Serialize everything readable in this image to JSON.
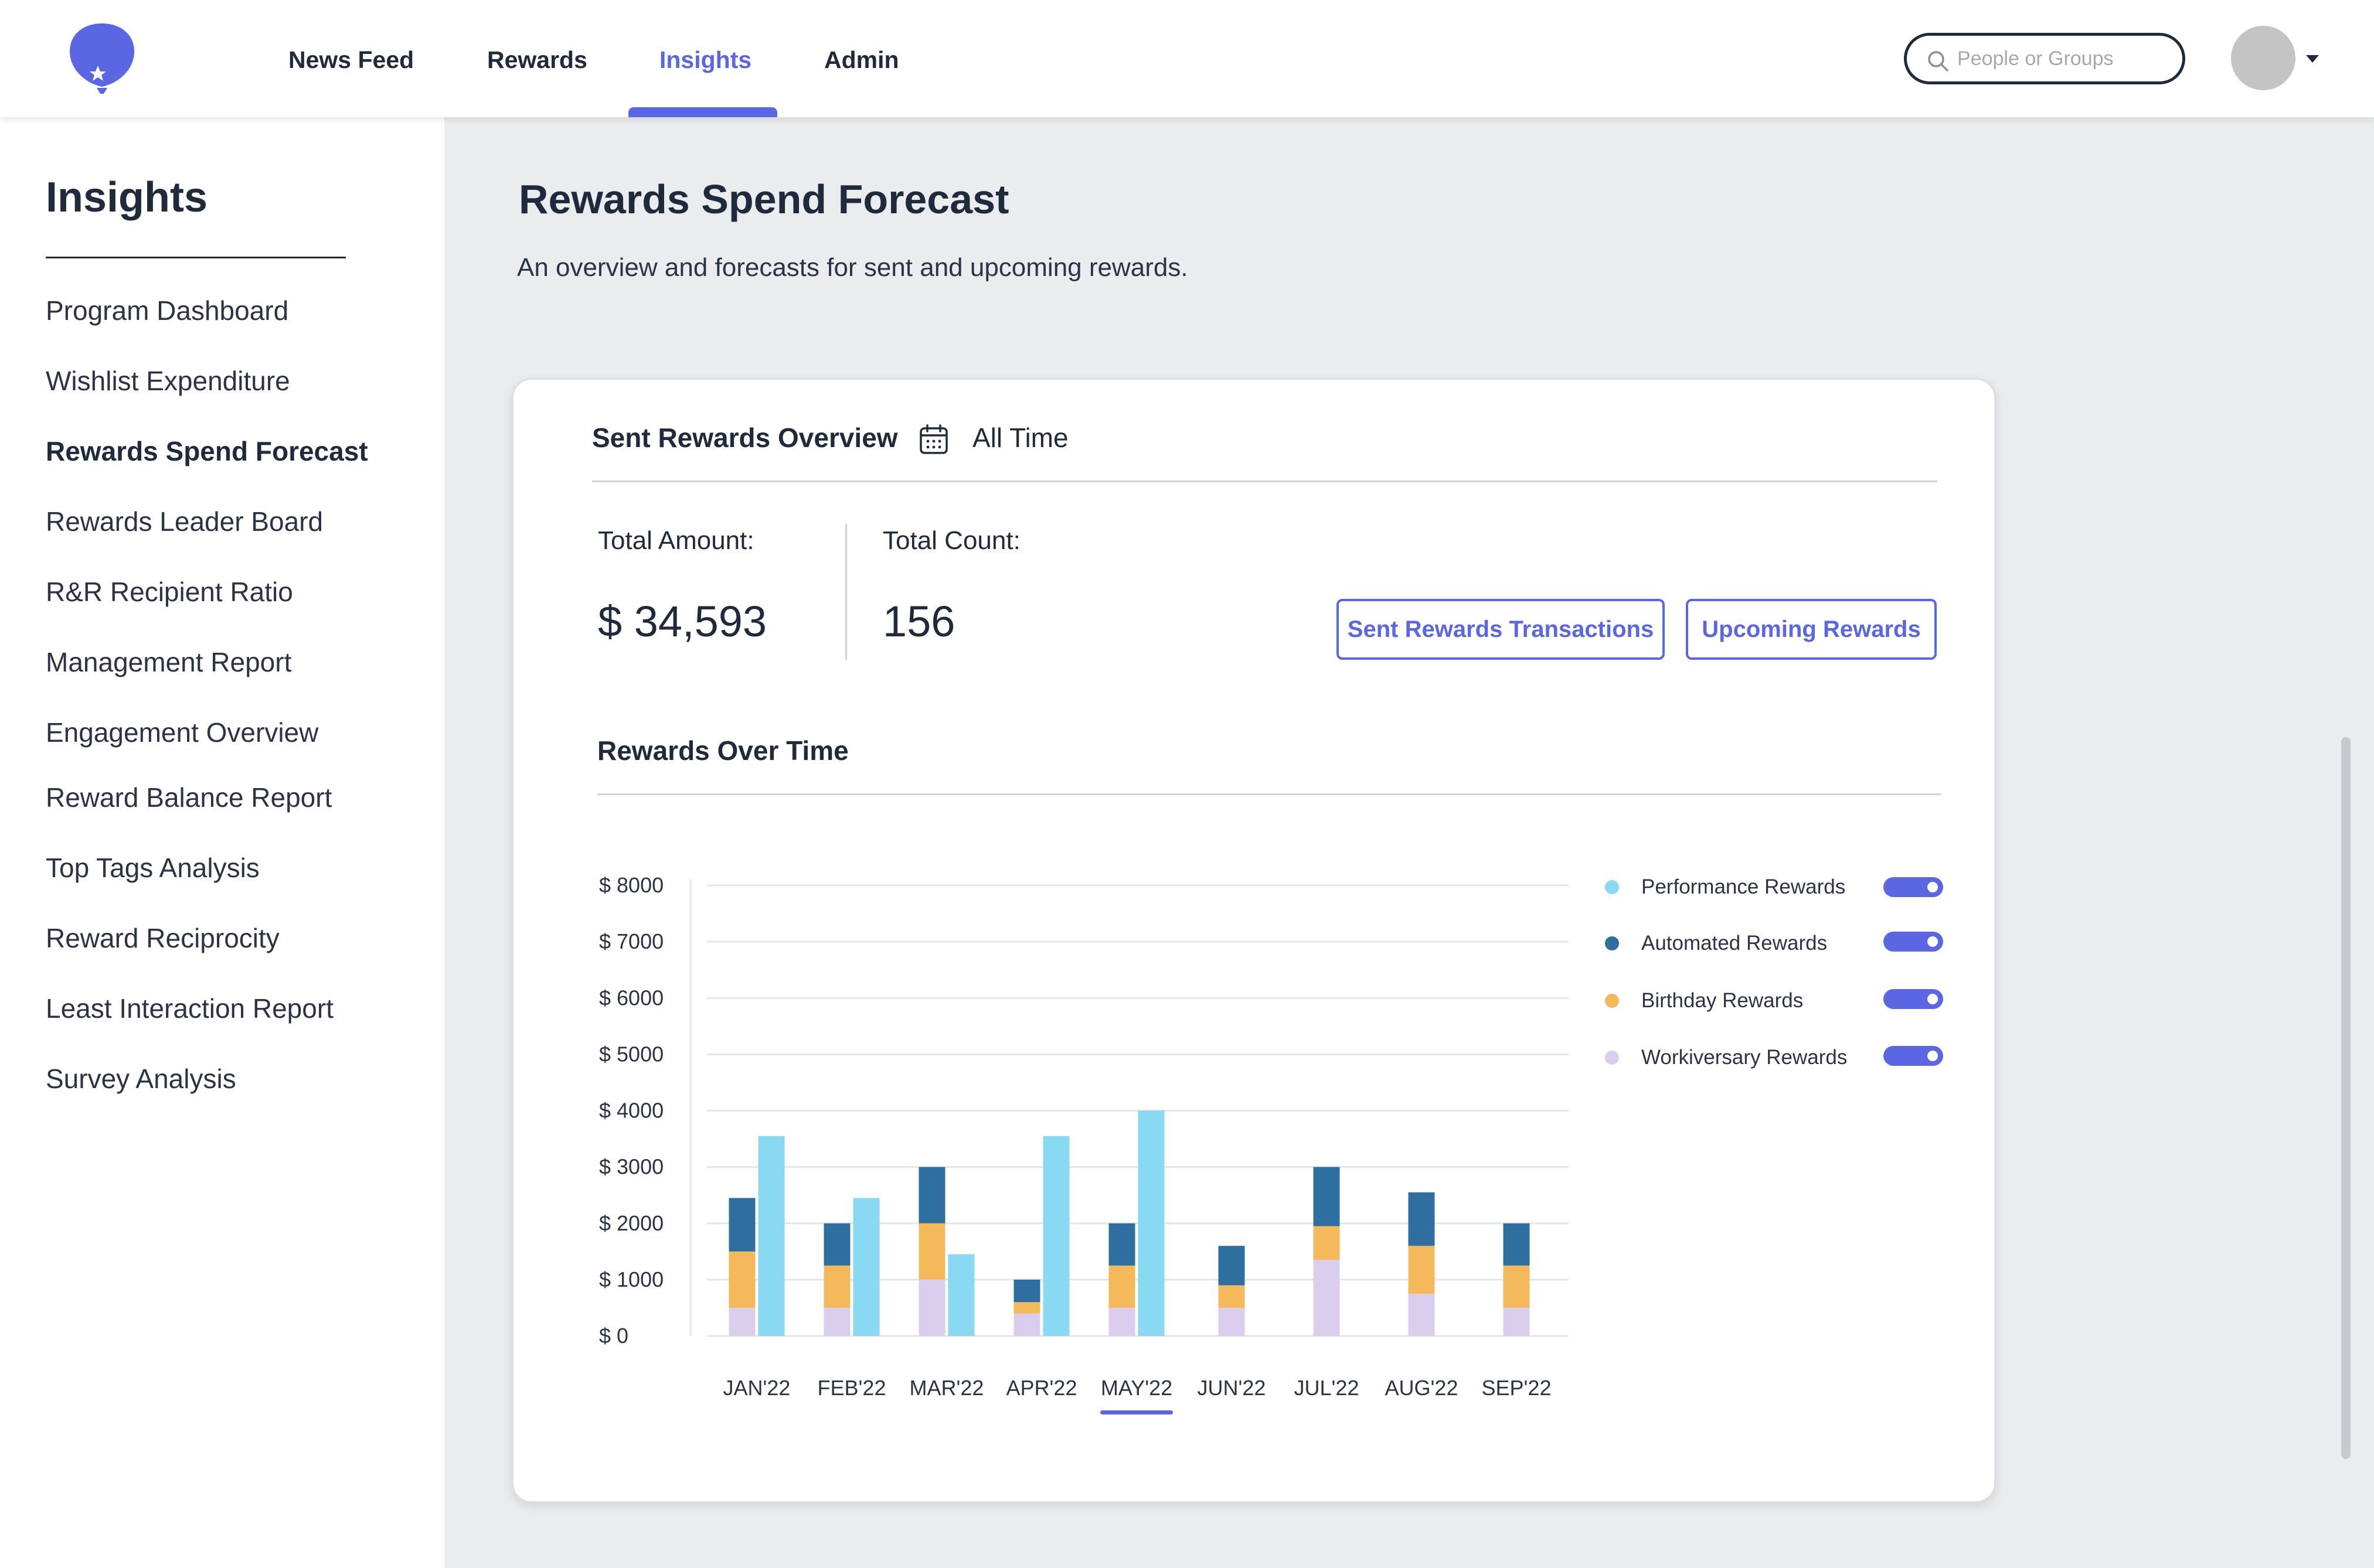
{
  "nav": {
    "items": [
      {
        "label": "News Feed"
      },
      {
        "label": "Rewards"
      },
      {
        "label": "Insights"
      },
      {
        "label": "Admin"
      }
    ],
    "active": "Insights",
    "search_placeholder": "People or Groups",
    "brand_color": "#5b67e2"
  },
  "sidebar": {
    "title": "Insights",
    "items": [
      {
        "label": "Program Dashboard"
      },
      {
        "label": "Wishlist Expenditure"
      },
      {
        "label": "Rewards Spend Forecast"
      },
      {
        "label": "Rewards Leader Board"
      },
      {
        "label": "R&R Recipient Ratio"
      },
      {
        "label": "Management Report"
      },
      {
        "label": "Engagement Overview"
      },
      {
        "label": "Reward Balance Report"
      },
      {
        "label": "Top Tags Analysis"
      },
      {
        "label": "Reward Reciprocity"
      },
      {
        "label": "Least Interaction Report"
      },
      {
        "label": "Survey Analysis"
      }
    ],
    "active": "Rewards Spend Forecast"
  },
  "page": {
    "title": "Rewards Spend Forecast",
    "subtitle": "An overview and forecasts for sent and upcoming rewards."
  },
  "card": {
    "title": "Sent Rewards Overview",
    "date_range": "All Time",
    "total_amount_label": "Total Amount:",
    "total_amount_value": "$ 34,593",
    "total_count_label": "Total Count:",
    "total_count_value": "156",
    "buttons": {
      "sent_transactions": "Sent Rewards Transactions",
      "upcoming": "Upcoming Rewards"
    },
    "section_title": "Rewards Over Time"
  },
  "legend": [
    {
      "label": "Performance Rewards",
      "color": "#8ad9f2",
      "enabled": true
    },
    {
      "label": "Automated Rewards",
      "color": "#2f6f9f",
      "enabled": true
    },
    {
      "label": "Birthday Rewards",
      "color": "#f4b95a",
      "enabled": true
    },
    {
      "label": "Workiversary Rewards",
      "color": "#dacdee",
      "enabled": true
    }
  ],
  "chart_data": {
    "type": "bar",
    "stacked": "workiversary + birthday + automated stacked; performance as separate bar",
    "categories": [
      "JAN'22",
      "FEB'22",
      "MAR'22",
      "APR'22",
      "MAY'22",
      "JUN'22",
      "JUL'22",
      "AUG'22",
      "SEP'22"
    ],
    "selected_category": "MAY'22",
    "ylim": [
      0,
      8000
    ],
    "yticks": [
      "$ 0",
      "$ 1000",
      "$ 2000",
      "$ 3000",
      "$ 4000",
      "$ 5000",
      "$ 6000",
      "$ 7000",
      "$ 8000"
    ],
    "ytick_values": [
      0,
      1000,
      2000,
      3000,
      4000,
      5000,
      6000,
      7000,
      8000
    ],
    "grid": true,
    "series": [
      {
        "name": "Workiversary Rewards",
        "values": [
          500,
          500,
          1000,
          400,
          500,
          500,
          1350,
          750,
          500
        ]
      },
      {
        "name": "Birthday Rewards",
        "values": [
          1000,
          750,
          1000,
          200,
          750,
          400,
          600,
          850,
          750
        ]
      },
      {
        "name": "Automated Rewards",
        "values": [
          950,
          750,
          1000,
          400,
          750,
          700,
          1050,
          950,
          750
        ]
      },
      {
        "name": "Performance Rewards",
        "values": [
          3550,
          2450,
          1450,
          3550,
          4000,
          0,
          0,
          0,
          0
        ]
      }
    ]
  }
}
